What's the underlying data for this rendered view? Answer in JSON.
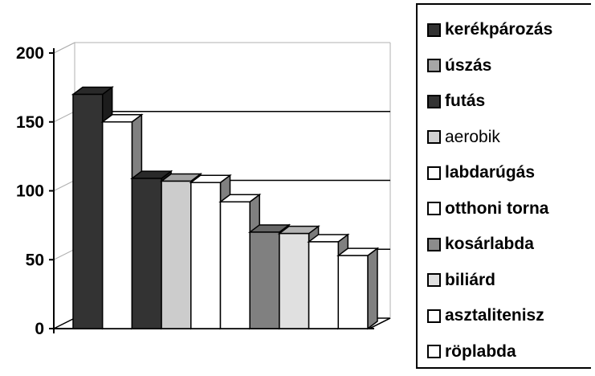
{
  "chart_data": {
    "type": "bar",
    "categories": [
      "kerékpározás",
      "úszás",
      "futás",
      "aerobik",
      "labdarúgás",
      "otthoni torna",
      "kosárlabda",
      "biliárd",
      "asztalitenisz",
      "röplabda"
    ],
    "values": [
      170,
      150,
      109,
      107,
      106,
      92,
      70,
      69,
      63,
      53
    ],
    "ylim": [
      0,
      200
    ],
    "yticks": [
      0,
      50,
      100,
      150,
      200
    ],
    "grid": true,
    "legend_position": "right",
    "style": "3d",
    "colors": [
      "#333333",
      "#ffffff",
      "#333333",
      "#cccccc",
      "#ffffff",
      "#ffffff",
      "#808080",
      "#e0e0e0",
      "#ffffff",
      "#ffffff"
    ],
    "legend_colors": [
      "#333333",
      "#a6a6a6",
      "#333333",
      "#d0d0d0",
      "#ffffff",
      "#ffffff",
      "#8c8c8c",
      "#e0e0e0",
      "#ffffff",
      "#ffffff"
    ],
    "xlabel": "",
    "ylabel": "",
    "title": ""
  }
}
